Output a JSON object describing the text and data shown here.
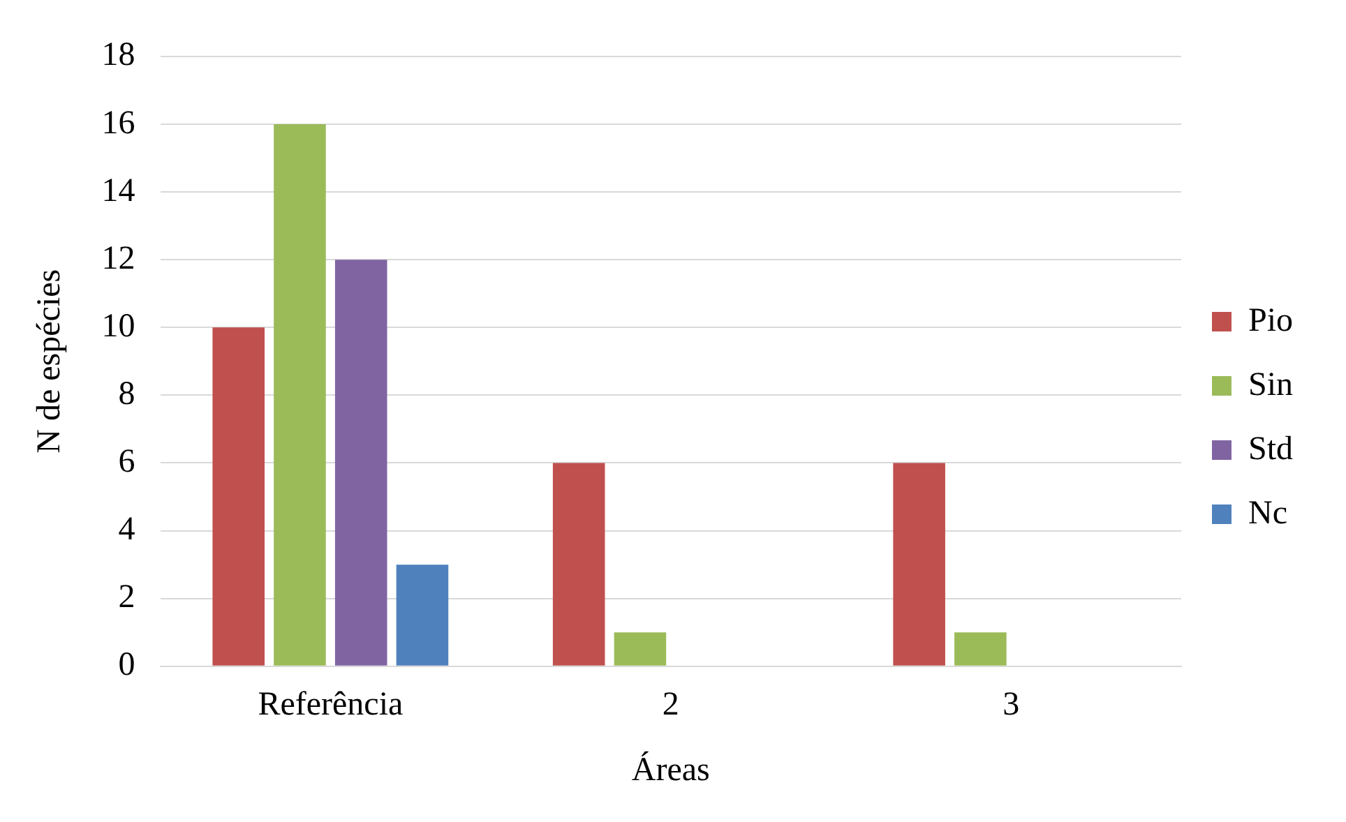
{
  "chart_data": {
    "type": "bar",
    "xlabel": "Áreas",
    "ylabel": "N de espécies",
    "categories": [
      "Referência",
      "2",
      "3"
    ],
    "series": [
      {
        "name": "Pio",
        "color": "#c0504d",
        "values": [
          10,
          6,
          6
        ]
      },
      {
        "name": "Sin",
        "color": "#9bbb59",
        "values": [
          16,
          1,
          1
        ]
      },
      {
        "name": "Std",
        "color": "#8064a2",
        "values": [
          12,
          0,
          0
        ]
      },
      {
        "name": "Nc",
        "color": "#4f81bd",
        "values": [
          3,
          0,
          0
        ]
      }
    ],
    "ylim": [
      0,
      18
    ],
    "yticks": [
      0,
      2,
      4,
      6,
      8,
      10,
      12,
      14,
      16,
      18
    ],
    "grid": "y",
    "legend": "right"
  }
}
